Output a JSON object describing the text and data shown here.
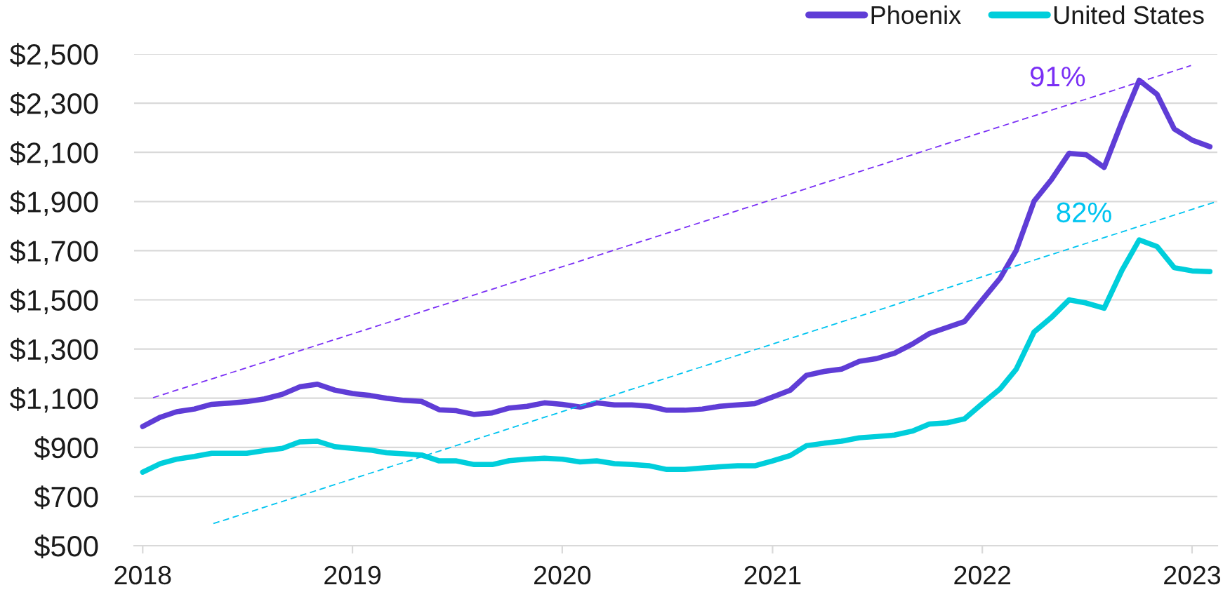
{
  "chart_data": {
    "type": "line",
    "x": [
      "2018-01",
      "2018-02",
      "2018-03",
      "2018-04",
      "2018-05",
      "2018-06",
      "2018-07",
      "2018-08",
      "2018-09",
      "2018-10",
      "2018-11",
      "2018-12",
      "2019-01",
      "2019-02",
      "2019-03",
      "2019-04",
      "2019-05",
      "2019-06",
      "2019-07",
      "2019-08",
      "2019-09",
      "2019-10",
      "2019-11",
      "2019-12",
      "2020-01",
      "2020-02",
      "2020-03",
      "2020-04",
      "2020-05",
      "2020-06",
      "2020-07",
      "2020-08",
      "2020-09",
      "2020-10",
      "2020-11",
      "2020-12",
      "2021-01",
      "2021-02",
      "2021-03",
      "2021-04",
      "2021-05",
      "2021-06",
      "2021-07",
      "2021-08",
      "2021-09",
      "2021-10",
      "2021-11",
      "2021-12",
      "2022-01",
      "2022-02",
      "2022-03",
      "2022-04",
      "2022-05",
      "2022-06",
      "2022-07",
      "2022-08",
      "2022-09",
      "2022-10",
      "2022-11",
      "2022-12",
      "2023-01",
      "2023-02"
    ],
    "series": [
      {
        "name": "Phoenix",
        "color": "#5f3dd6",
        "values": [
          985,
          1023,
          1045,
          1056,
          1075,
          1080,
          1086,
          1097,
          1116,
          1146,
          1157,
          1133,
          1119,
          1111,
          1100,
          1091,
          1087,
          1053,
          1049,
          1034,
          1040,
          1060,
          1067,
          1081,
          1075,
          1064,
          1081,
          1073,
          1073,
          1067,
          1051,
          1051,
          1056,
          1067,
          1073,
          1078,
          1105,
          1133,
          1193,
          1209,
          1218,
          1250,
          1261,
          1283,
          1320,
          1363,
          1388,
          1412,
          1500,
          1588,
          1701,
          1901,
          1988,
          2096,
          2090,
          2039,
          2225,
          2393,
          2336,
          2195,
          2150,
          2123
        ]
      },
      {
        "name": "United States",
        "color": "#00cedb",
        "values": [
          799,
          834,
          852,
          863,
          876,
          876,
          876,
          887,
          896,
          922,
          925,
          903,
          896,
          889,
          878,
          874,
          869,
          845,
          845,
          830,
          830,
          846,
          852,
          856,
          852,
          841,
          845,
          834,
          830,
          825,
          810,
          810,
          816,
          821,
          825,
          825,
          845,
          867,
          907,
          917,
          925,
          939,
          944,
          950,
          966,
          995,
          1000,
          1016,
          1078,
          1138,
          1218,
          1369,
          1428,
          1500,
          1487,
          1466,
          1620,
          1744,
          1717,
          1631,
          1618,
          1615
        ]
      },
      {
        "name": "91%",
        "type": "line",
        "line_style": "dashed",
        "color": "#7a2ff5",
        "x": [
          "2018-01-19",
          "2022-12-30"
        ],
        "values": [
          1102,
          2453
        ]
      },
      {
        "name": "82%",
        "type": "line",
        "line_style": "dashed",
        "color": "#00c4f0",
        "x": [
          "2018-05-04",
          "2023-02-14"
        ],
        "values": [
          590,
          1901
        ]
      }
    ],
    "xlim": [
      "2017-12-17",
      "2023-02-14"
    ],
    "xticks": [
      "2018",
      "2019",
      "2020",
      "2021",
      "2022",
      "2023"
    ],
    "ylim": [
      500,
      2500
    ],
    "yticks": [
      {
        "value": 500,
        "label": "$500"
      },
      {
        "value": 700,
        "label": "$700"
      },
      {
        "value": 900,
        "label": "$900"
      },
      {
        "value": 1100,
        "label": "$1,100"
      },
      {
        "value": 1300,
        "label": "$1,300"
      },
      {
        "value": 1500,
        "label": "$1,500"
      },
      {
        "value": 1700,
        "label": "$1,700"
      },
      {
        "value": 1900,
        "label": "$1,900"
      },
      {
        "value": 2100,
        "label": "$2,100"
      },
      {
        "value": 2300,
        "label": "$2,300"
      },
      {
        "value": 2500,
        "label": "$2,500"
      }
    ],
    "grid": "y",
    "legend": "top right"
  }
}
